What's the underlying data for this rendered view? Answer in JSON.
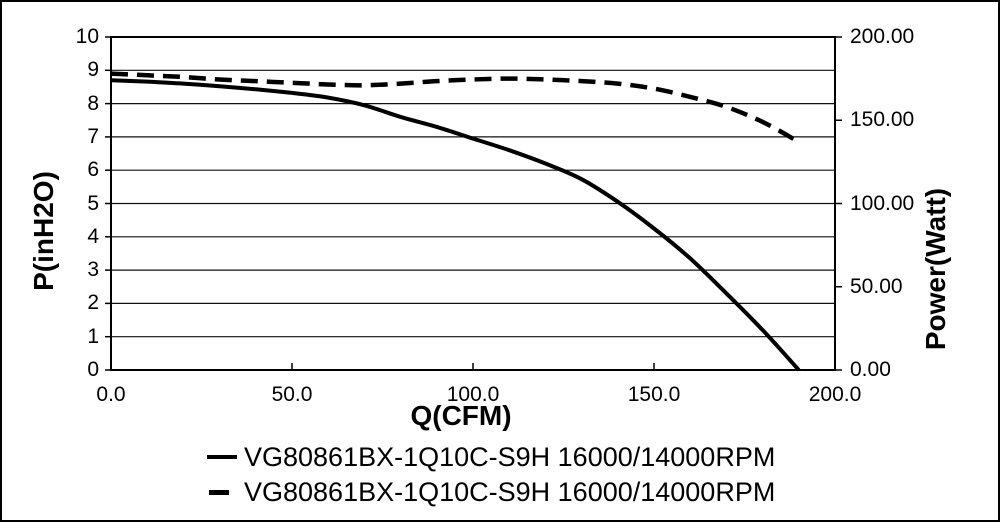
{
  "chart_data": {
    "type": "line",
    "title": "",
    "xlabel": "Q(CFM)",
    "ylabel_left": "P(inH2O)",
    "ylabel_right": "Power(Watt)",
    "xlim": [
      0,
      200
    ],
    "ylim_left": [
      0,
      10
    ],
    "ylim_right": [
      0,
      200
    ],
    "grid": "horizontal",
    "legend_position": "bottom",
    "line_color": "#000000",
    "background_color": "#ffffff",
    "x_ticks": {
      "values": [
        0,
        50,
        100,
        150,
        200
      ],
      "labels": [
        "0.0",
        "50.0",
        "100.0",
        "150.0",
        "200.0"
      ]
    },
    "y_left_ticks": {
      "values": [
        0,
        1,
        2,
        3,
        4,
        5,
        6,
        7,
        8,
        9,
        10
      ],
      "labels": [
        "0",
        "1",
        "2",
        "3",
        "4",
        "5",
        "6",
        "7",
        "8",
        "9",
        "10"
      ]
    },
    "y_right_ticks": {
      "values": [
        0,
        50,
        100,
        150,
        200
      ],
      "labels": [
        "0.00",
        "50.00",
        "100.00",
        "150.00",
        "200.00"
      ]
    },
    "series": [
      {
        "name": "VG80861BX-1Q10C-S9H 16000/14000RPM",
        "axis": "left",
        "unit": "inH2O",
        "line_style": "solid",
        "x": [
          0,
          10,
          20,
          30,
          40,
          50,
          60,
          70,
          80,
          90,
          100,
          110,
          120,
          130,
          140,
          150,
          160,
          170,
          180,
          190
        ],
        "y": [
          8.7,
          8.66,
          8.6,
          8.52,
          8.43,
          8.32,
          8.18,
          7.95,
          7.6,
          7.3,
          6.95,
          6.6,
          6.2,
          5.73,
          5.05,
          4.25,
          3.35,
          2.3,
          1.2,
          0.0
        ]
      },
      {
        "name": "VG80861BX-1Q10C-S9H 16000/14000RPM",
        "axis": "right",
        "unit": "Watt",
        "line_style": "dashed",
        "x": [
          0,
          10,
          20,
          30,
          40,
          50,
          60,
          70,
          80,
          90,
          100,
          110,
          120,
          130,
          140,
          150,
          160,
          170,
          180,
          190
        ],
        "y": [
          178,
          177,
          176,
          174.5,
          173.5,
          172.5,
          171.5,
          171,
          172,
          173.5,
          174.5,
          175,
          174.5,
          173.5,
          172,
          169,
          164,
          158,
          149,
          137
        ]
      }
    ],
    "legend": [
      {
        "label": "VG80861BX-1Q10C-S9H 16000/14000RPM",
        "line_style": "solid"
      },
      {
        "label": "VG80861BX-1Q10C-S9H 16000/14000RPM",
        "line_style": "dashed"
      }
    ]
  }
}
